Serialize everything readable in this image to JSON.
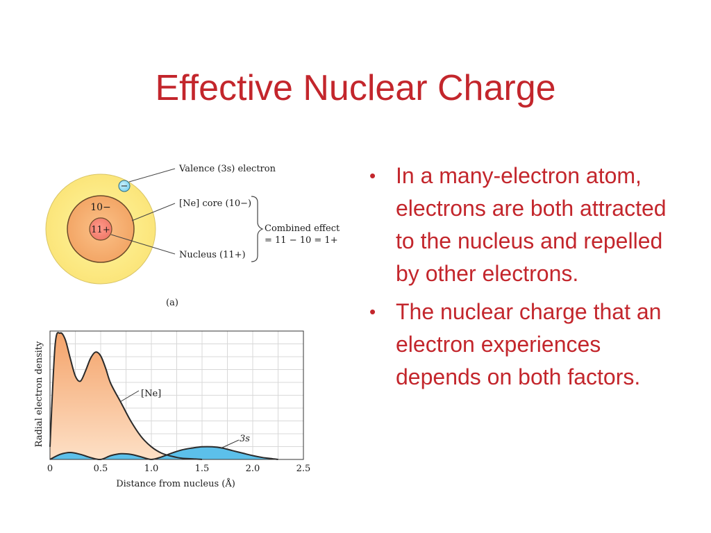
{
  "slide": {
    "title": "Effective Nuclear Charge",
    "bullets": [
      "In a many-electron atom, electrons are both attracted to the nucleus and repelled by other electrons.",
      "The nuclear charge that an electron experiences depends on both factors."
    ],
    "bullet_char": "•"
  },
  "atom_diagram": {
    "valence_label": "Valence (3s) electron",
    "electron_sign": "−",
    "core_label": "[Ne] core (10−)",
    "core_charge": "10−",
    "nucleus_charge": "11+",
    "nucleus_label": "Nucleus (11+)",
    "combined_line1": "Combined effect",
    "combined_line2": "= 11 − 10 = 1+",
    "panel_label": "(a)"
  },
  "chart_data": {
    "type": "area",
    "xlabel": "Distance from nucleus (Å)",
    "ylabel": "Radial electron density",
    "xlim": [
      0,
      2.5
    ],
    "x_ticks": [
      "0",
      "0.5",
      "1.0",
      "1.5",
      "2.0",
      "2.5"
    ],
    "grid": true,
    "series": [
      {
        "name": "[Ne]",
        "x": [
          0,
          0.05,
          0.1,
          0.15,
          0.2,
          0.25,
          0.3,
          0.35,
          0.4,
          0.45,
          0.5,
          0.55,
          0.6,
          0.7,
          0.8,
          0.9,
          1.0,
          1.1,
          1.2,
          1.3,
          1.4,
          1.5
        ],
        "y": [
          0.1,
          0.9,
          1.0,
          0.95,
          0.8,
          0.66,
          0.62,
          0.7,
          0.8,
          0.85,
          0.82,
          0.72,
          0.6,
          0.45,
          0.3,
          0.18,
          0.1,
          0.05,
          0.025,
          0.01,
          0.005,
          0
        ]
      },
      {
        "name": "3s",
        "x": [
          0,
          0.1,
          0.2,
          0.3,
          0.4,
          0.5,
          0.6,
          0.7,
          0.8,
          0.9,
          1.0,
          1.1,
          1.2,
          1.3,
          1.4,
          1.5,
          1.6,
          1.7,
          1.8,
          1.9,
          2.0,
          2.1,
          2.2,
          2.25
        ],
        "y": [
          0,
          0.04,
          0.055,
          0.04,
          0.015,
          0.0,
          0.03,
          0.045,
          0.04,
          0.02,
          0.0,
          0.02,
          0.05,
          0.075,
          0.09,
          0.1,
          0.1,
          0.09,
          0.07,
          0.05,
          0.03,
          0.015,
          0.005,
          0
        ]
      }
    ],
    "colors": {
      "ne_fill": "#f6b27c",
      "s3_fill": "#5cc0ea",
      "line": "#2a2a2a"
    }
  }
}
